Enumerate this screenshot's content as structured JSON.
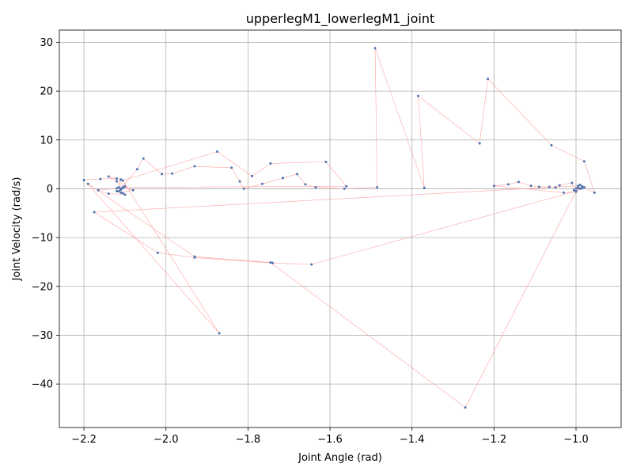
{
  "chart_data": {
    "type": "scatter",
    "title": "upperlegM1_lowerlegM1_joint",
    "xlabel": "Joint Angle (rad)",
    "ylabel": "Joint Velocity (rad/s)",
    "xlim": [
      -2.26,
      -0.89
    ],
    "ylim": [
      -48.9,
      32.5
    ],
    "xticks": [
      -2.2,
      -2.0,
      -1.8,
      -1.6,
      -1.4,
      -1.2,
      -1.0
    ],
    "xtick_labels": [
      "−2.2",
      "−2.0",
      "−1.8",
      "−1.6",
      "−1.4",
      "−1.2",
      "−1.0"
    ],
    "yticks": [
      30,
      20,
      10,
      0,
      -10,
      -20,
      -30,
      -40
    ],
    "ytick_labels": [
      "30",
      "20",
      "10",
      "0",
      "−10",
      "−20",
      "−30",
      "−40"
    ],
    "grid": true,
    "line_color": "#ff9999",
    "marker_color": "#4c72b0",
    "series": [
      {
        "points": [
          [
            -2.2,
            1.8
          ],
          [
            -2.16,
            2.0
          ],
          [
            -2.12,
            2.1
          ],
          [
            -2.1,
            0.5
          ],
          [
            -2.12,
            -0.5
          ],
          [
            -2.11,
            -0.8
          ],
          [
            -2.08,
            -0.3
          ],
          [
            -2.105,
            0.2
          ],
          [
            -2.12,
            1.5
          ],
          [
            -2.14,
            2.5
          ],
          [
            -2.11,
            1.9
          ],
          [
            -2.115,
            0.3
          ],
          [
            -2.11,
            -0.2
          ],
          [
            -2.105,
            -0.9
          ],
          [
            -2.1,
            -1.2
          ],
          [
            -2.14,
            -1.0
          ],
          [
            -2.165,
            -0.3
          ],
          [
            -2.12,
            0.1
          ],
          [
            -2.11,
            0.0
          ],
          [
            -2.115,
            -0.5
          ],
          [
            -2.07,
            4.0
          ],
          [
            -2.055,
            6.2
          ],
          [
            -2.01,
            3.0
          ],
          [
            -1.985,
            3.1
          ],
          [
            -1.93,
            4.6
          ],
          [
            -1.84,
            4.3
          ],
          [
            -1.82,
            1.5
          ],
          [
            -1.81,
            0.0
          ],
          [
            -1.765,
            1.0
          ],
          [
            -1.715,
            2.2
          ],
          [
            -1.68,
            3.0
          ],
          [
            -1.66,
            0.9
          ],
          [
            -1.635,
            0.3
          ],
          [
            -1.565,
            0.0
          ],
          [
            -1.485,
            0.3
          ],
          [
            -1.49,
            28.8
          ],
          [
            -1.37,
            0.2
          ],
          [
            -1.385,
            19.0
          ],
          [
            -1.235,
            9.3
          ],
          [
            -1.215,
            22.5
          ],
          [
            -1.06,
            8.9
          ],
          [
            -0.98,
            5.6
          ],
          [
            -0.955,
            -0.8
          ],
          [
            -0.98,
            0.3
          ],
          [
            -0.99,
            0.8
          ],
          [
            -0.985,
            0.5
          ],
          [
            -1.0,
            -0.5
          ],
          [
            -0.995,
            0.2
          ],
          [
            -1.0,
            0.1
          ],
          [
            -1.005,
            -0.3
          ],
          [
            -1.01,
            1.2
          ],
          [
            -1.04,
            0.7
          ],
          [
            -1.05,
            0.3
          ],
          [
            -1.065,
            0.4
          ],
          [
            -1.09,
            0.4
          ],
          [
            -1.11,
            0.6
          ],
          [
            -1.14,
            1.4
          ],
          [
            -1.165,
            0.9
          ],
          [
            -1.2,
            0.6
          ],
          [
            -1.03,
            -0.8
          ],
          [
            -1.0,
            -0.6
          ],
          [
            -0.99,
            0.0
          ],
          [
            -0.985,
            0.1
          ],
          [
            -0.995,
            0.6
          ],
          [
            -2.175,
            -4.8
          ],
          [
            -2.02,
            -13.1
          ],
          [
            -1.93,
            -14.1
          ],
          [
            -1.74,
            -15.2
          ],
          [
            -1.645,
            -15.5
          ],
          [
            -1.0,
            -0.5
          ],
          [
            -1.27,
            -44.8
          ],
          [
            -1.745,
            -15.1
          ],
          [
            -1.93,
            -13.9
          ],
          [
            -2.19,
            1.0
          ],
          [
            -1.87,
            -29.6
          ],
          [
            -2.105,
            1.7
          ],
          [
            -1.875,
            7.6
          ],
          [
            -1.79,
            2.6
          ],
          [
            -1.745,
            5.2
          ],
          [
            -1.61,
            5.5
          ],
          [
            -1.56,
            0.5
          ],
          [
            -2.105,
            0.3
          ],
          [
            -2.11,
            0.0
          ]
        ]
      }
    ]
  }
}
